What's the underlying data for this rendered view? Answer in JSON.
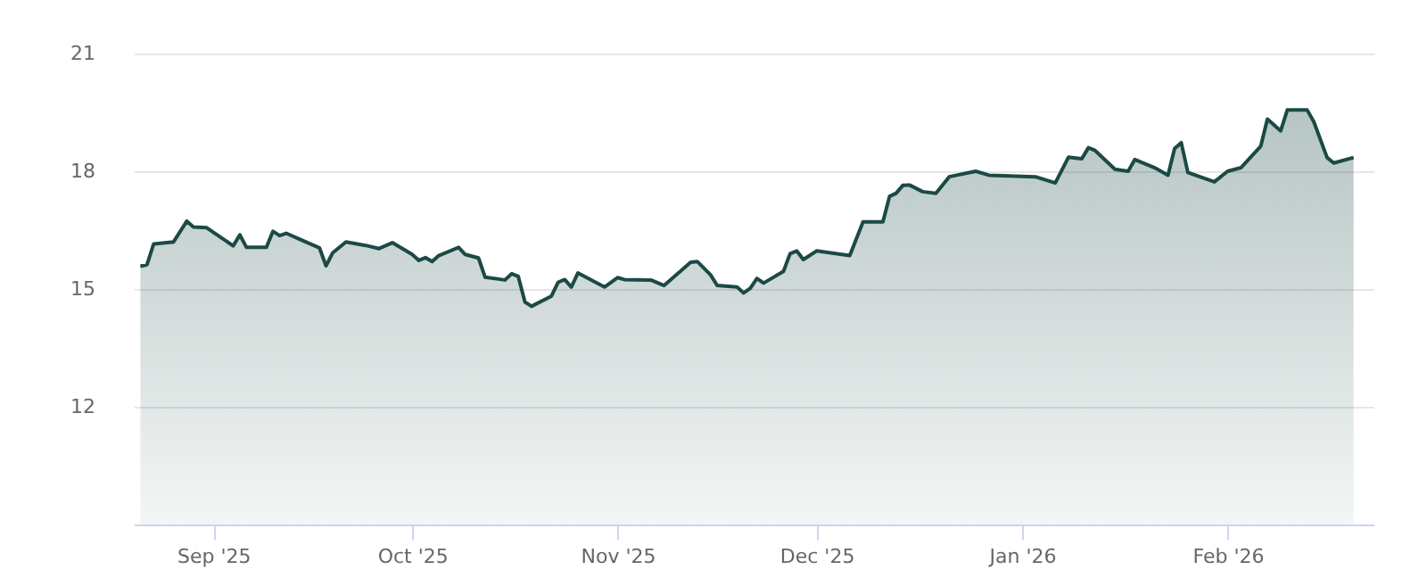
{
  "chart_data": {
    "type": "area",
    "x": [
      "2025-08-21",
      "2025-08-22",
      "2025-08-23",
      "2025-08-26",
      "2025-08-28",
      "2025-08-29",
      "2025-08-31",
      "2025-09-04",
      "2025-09-05",
      "2025-09-06",
      "2025-09-09",
      "2025-09-10",
      "2025-09-11",
      "2025-09-12",
      "2025-09-14",
      "2025-09-17",
      "2025-09-18",
      "2025-09-19",
      "2025-09-21",
      "2025-09-24",
      "2025-09-26",
      "2025-09-28",
      "2025-10-01",
      "2025-10-02",
      "2025-10-03",
      "2025-10-04",
      "2025-10-05",
      "2025-10-08",
      "2025-10-09",
      "2025-10-11",
      "2025-10-12",
      "2025-10-15",
      "2025-10-16",
      "2025-10-17",
      "2025-10-18",
      "2025-10-19",
      "2025-10-22",
      "2025-10-23",
      "2025-10-24",
      "2025-10-25",
      "2025-10-26",
      "2025-10-30",
      "2025-11-01",
      "2025-11-02",
      "2025-11-06",
      "2025-11-08",
      "2025-11-12",
      "2025-11-13",
      "2025-11-15",
      "2025-11-16",
      "2025-11-19",
      "2025-11-20",
      "2025-11-21",
      "2025-11-22",
      "2025-11-23",
      "2025-11-26",
      "2025-11-27",
      "2025-11-28",
      "2025-11-29",
      "2025-12-01",
      "2025-12-06",
      "2025-12-08",
      "2025-12-11",
      "2025-12-12",
      "2025-12-13",
      "2025-12-14",
      "2025-12-15",
      "2025-12-17",
      "2025-12-19",
      "2025-12-21",
      "2025-12-25",
      "2025-12-27",
      "2026-01-03",
      "2026-01-06",
      "2026-01-08",
      "2026-01-10",
      "2026-01-11",
      "2026-01-12",
      "2026-01-15",
      "2026-01-17",
      "2026-01-18",
      "2026-01-21",
      "2026-01-23",
      "2026-01-24",
      "2026-01-25",
      "2026-01-26",
      "2026-01-30",
      "2026-02-01",
      "2026-02-03",
      "2026-02-06",
      "2026-02-07",
      "2026-02-09",
      "2026-02-10",
      "2026-02-13",
      "2026-02-14",
      "2026-02-16",
      "2026-02-17",
      "2026-02-20"
    ],
    "series": [
      {
        "color": "#1b4a45",
        "values": [
          15.58,
          15.62,
          16.15,
          16.2,
          16.73,
          16.58,
          16.56,
          16.1,
          16.38,
          16.06,
          16.06,
          16.47,
          16.36,
          16.42,
          16.27,
          16.05,
          15.59,
          15.92,
          16.2,
          16.11,
          16.03,
          16.18,
          15.88,
          15.73,
          15.8,
          15.7,
          15.85,
          16.06,
          15.88,
          15.79,
          15.3,
          15.23,
          15.39,
          15.32,
          14.67,
          14.56,
          14.82,
          15.17,
          15.24,
          15.05,
          15.41,
          15.05,
          15.29,
          15.24,
          15.23,
          15.09,
          15.68,
          15.7,
          15.36,
          15.09,
          15.05,
          14.9,
          15.02,
          15.27,
          15.15,
          15.45,
          15.9,
          15.97,
          15.75,
          15.97,
          15.85,
          16.71,
          16.71,
          17.36,
          17.44,
          17.64,
          17.65,
          17.48,
          17.44,
          17.86,
          18.0,
          17.9,
          17.86,
          17.7,
          18.36,
          18.32,
          18.6,
          18.53,
          18.05,
          18.0,
          18.3,
          18.09,
          17.9,
          18.58,
          18.73,
          17.97,
          17.73,
          18.0,
          18.09,
          18.64,
          19.33,
          19.03,
          19.56,
          19.56,
          19.26,
          18.35,
          18.21,
          18.35
        ]
      }
    ],
    "xlim": [
      "2025-08-20",
      "2026-02-23"
    ],
    "xticks": [
      {
        "value": "2025-09-01",
        "label": "Sep '25"
      },
      {
        "value": "2025-10-01",
        "label": "Oct '25"
      },
      {
        "value": "2025-11-01",
        "label": "Nov '25"
      },
      {
        "value": "2025-12-01",
        "label": "Dec '25"
      },
      {
        "value": "2026-01-01",
        "label": "Jan '26"
      },
      {
        "value": "2026-02-01",
        "label": "Feb '26"
      }
    ],
    "ylim": [
      9,
      21
    ],
    "yticks": [
      12,
      15,
      18,
      21
    ],
    "grid": "y"
  }
}
